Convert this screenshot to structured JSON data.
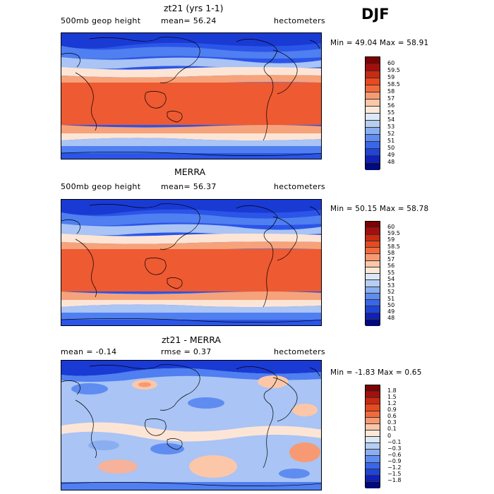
{
  "season": "DJF",
  "panels": [
    {
      "title": "zt21 (yrs 1-1)",
      "left_label": "500mb geop height",
      "center_label": "mean=  56.24",
      "right_label": "hectometers",
      "minmax": "Min =  49.04 Max =  58.91",
      "colorbar_labels": [
        "60",
        "59.5",
        "59",
        "58.5",
        "58",
        "57",
        "56",
        "55",
        "54",
        "53",
        "52",
        "51",
        "50",
        "49",
        "48"
      ],
      "colorbar_colors": [
        "#7f0000",
        "#a30f0f",
        "#c92a12",
        "#e64a1e",
        "#f26a3c",
        "#f79a73",
        "#fbc7a8",
        "#fde8d8",
        "#dce8f7",
        "#b6cef2",
        "#8aaef0",
        "#5f8cf0",
        "#3a66e8",
        "#1f44d6",
        "#1020b8",
        "#000a7a"
      ]
    },
    {
      "title": "MERRA",
      "left_label": "500mb geop height",
      "center_label": "mean=  56.37",
      "right_label": "hectometers",
      "minmax": "Min =  50.15 Max =  58.78",
      "colorbar_labels": [
        "60",
        "59.5",
        "59",
        "58.5",
        "58",
        "57",
        "56",
        "55",
        "54",
        "53",
        "52",
        "51",
        "50",
        "49",
        "48"
      ],
      "colorbar_colors": [
        "#7f0000",
        "#a30f0f",
        "#c92a12",
        "#e64a1e",
        "#f26a3c",
        "#f79a73",
        "#fbc7a8",
        "#fde8d8",
        "#dce8f7",
        "#b6cef2",
        "#8aaef0",
        "#5f8cf0",
        "#3a66e8",
        "#1f44d6",
        "#1020b8",
        "#000a7a"
      ]
    },
    {
      "title": "zt21 - MERRA",
      "left_label": "mean =   -0.14",
      "center_label": "rmse =    0.37",
      "right_label": "hectometers",
      "minmax": "Min =  -1.83 Max =    0.65",
      "colorbar_labels": [
        "1.8",
        "1.5",
        "1.2",
        "0.9",
        "0.6",
        "0.3",
        "0.1",
        "0",
        "−0.1",
        "−0.3",
        "−0.6",
        "−0.9",
        "−1.2",
        "−1.5",
        "−1.8"
      ],
      "colorbar_colors": [
        "#7f0000",
        "#a30f0f",
        "#c92a12",
        "#e64a1e",
        "#f26a3c",
        "#f79a73",
        "#fbc7a8",
        "#fde8d8",
        "#dce8f7",
        "#b6cef2",
        "#8aaef0",
        "#5f8cf0",
        "#3a66e8",
        "#1f44d6",
        "#1020b8",
        "#000a7a"
      ]
    }
  ]
}
